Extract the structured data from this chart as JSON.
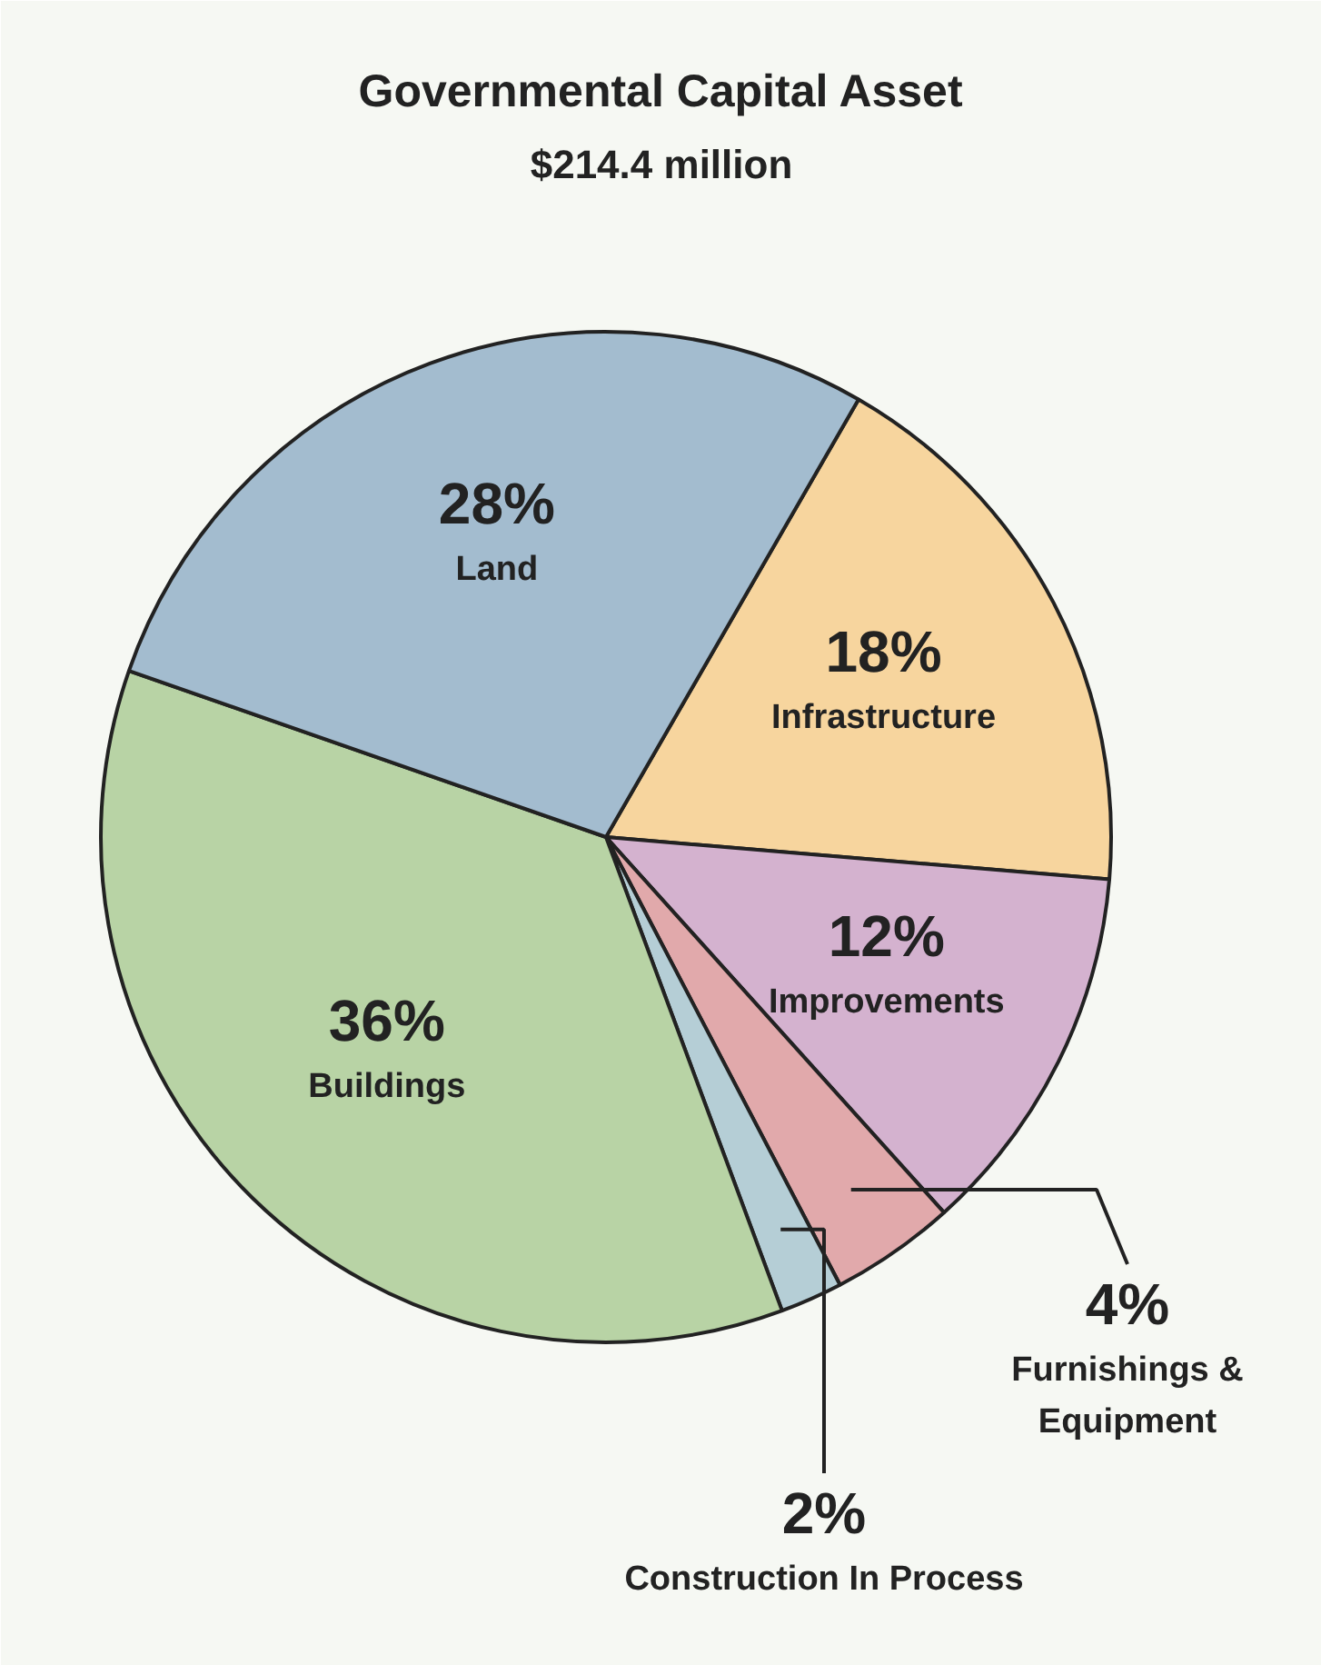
{
  "chart_data": {
    "type": "pie",
    "title": "Governmental Capital Asset",
    "subtitle": "$214.4 million",
    "categories": [
      "Infrastructure",
      "Improvements",
      "Furnishings &\nEquipment",
      "Construction In Process",
      "Buildings",
      "Land"
    ],
    "values": [
      18,
      12,
      4,
      2,
      36,
      28
    ],
    "colors": [
      "#f7d59e",
      "#d4b2cf",
      "#e1a9ab",
      "#b5ced6",
      "#b8d3a5",
      "#a3bccf"
    ],
    "data_labels": true,
    "value_labels": [
      "18%",
      "12%",
      "4%",
      "2%",
      "36%",
      "28%"
    ]
  }
}
